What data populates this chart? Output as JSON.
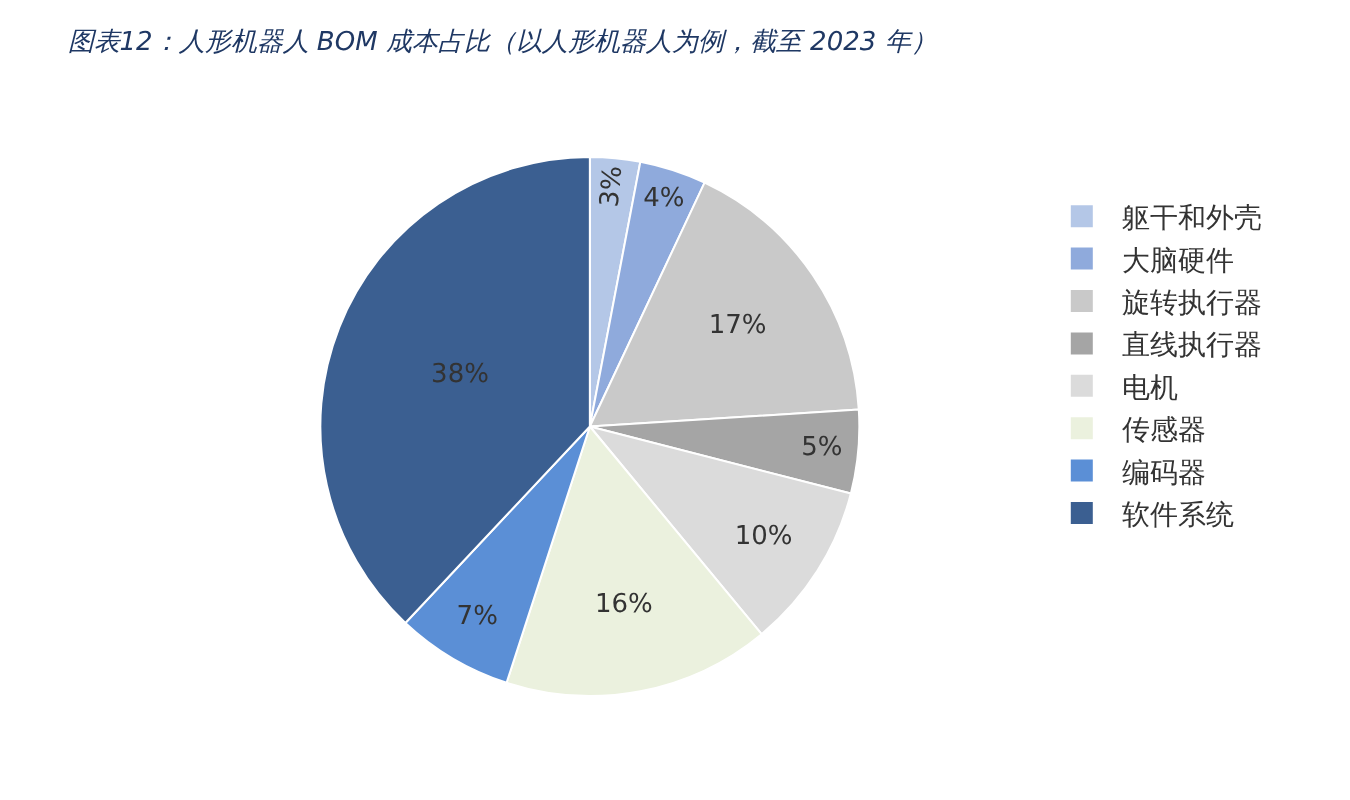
{
  "chart_data": {
    "type": "pie",
    "title": "图表12：人形机器人 BOM 成本占比（以人形机器人为例，截至 2023 年）",
    "categories": [
      "躯干和外壳",
      "大脑硬件",
      "旋转执行器",
      "直线执行器",
      "电机",
      "传感器",
      "编码器",
      "软件系统"
    ],
    "values": [
      3,
      4,
      17,
      5,
      10,
      16,
      7,
      38
    ],
    "value_labels": [
      "3%",
      "4%",
      "17%",
      "5%",
      "10%",
      "16%",
      "7%",
      "38%"
    ],
    "colors": [
      "#b4c7e7",
      "#8faadc",
      "#c9c9c9",
      "#a5a5a5",
      "#dbdbdb",
      "#ebf1de",
      "#5b8fd6",
      "#3b5f91"
    ],
    "legend": "right"
  }
}
